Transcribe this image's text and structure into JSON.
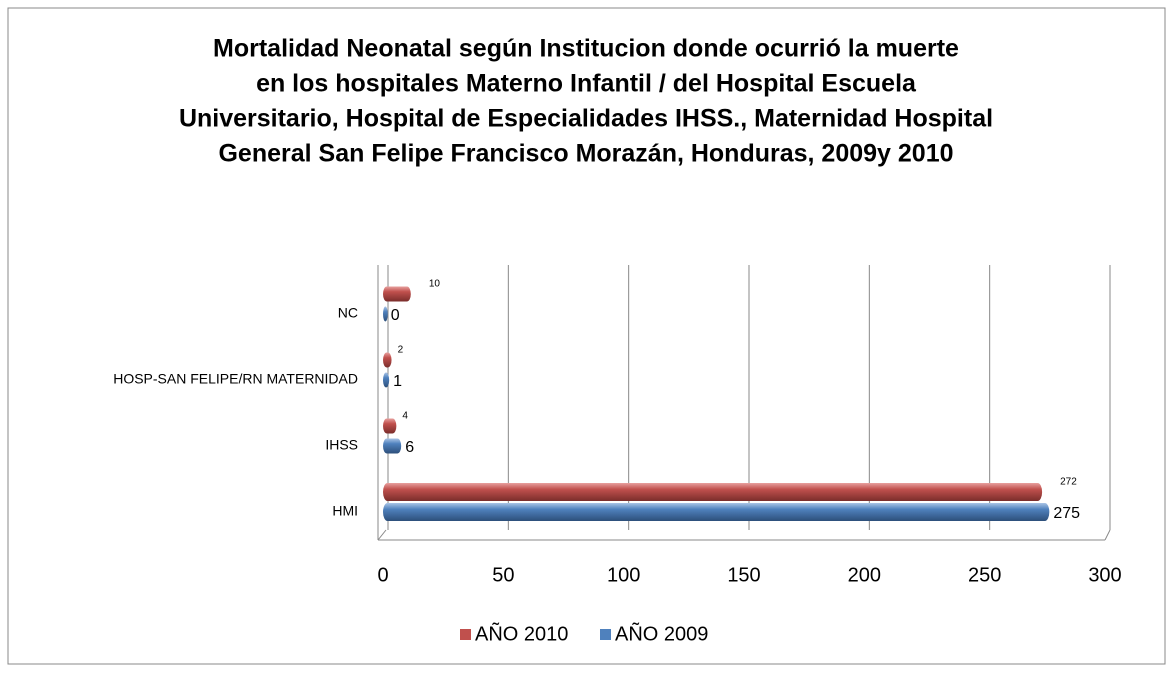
{
  "chart_data": {
    "type": "bar",
    "orientation": "horizontal",
    "title": [
      "Mortalidad Neonatal según Institucion  donde ocurrió la muerte",
      "en los hospitales  Materno Infantil / del Hospital Escuela",
      "Universitario, Hospital de Especialidades IHSS., Maternidad Hospital",
      "General San Felipe Francisco Morazán, Honduras, 2009y 2010"
    ],
    "categories": [
      "HMI",
      "IHSS",
      "HOSP-SAN FELIPE/RN MATERNIDAD",
      "NC"
    ],
    "series": [
      {
        "name": "AÑO 2010",
        "color": "#c0504d",
        "values": [
          272,
          4,
          2,
          10
        ]
      },
      {
        "name": "AÑO 2009",
        "color": "#4f81bd",
        "values": [
          275,
          6,
          1,
          0
        ]
      }
    ],
    "xlim": [
      0,
      300
    ],
    "xticks": [
      0,
      50,
      100,
      150,
      200,
      250,
      300
    ],
    "grid": true,
    "legend": "bottom"
  }
}
